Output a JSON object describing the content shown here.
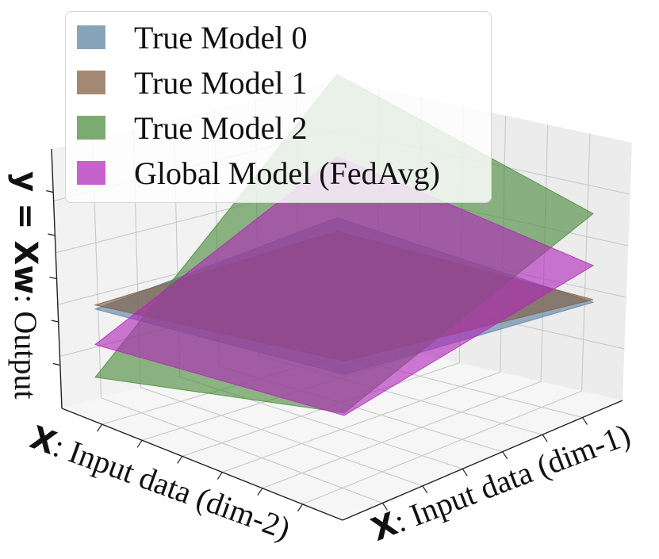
{
  "chart_data": {
    "type": "surface3d",
    "axes": {
      "x_dim1": {
        "bold": "X",
        "text": ": Input data (dim-1)"
      },
      "x_dim2": {
        "bold": "X",
        "text": ": Input data (dim-2)"
      },
      "y": {
        "bold": "y = Xw",
        "text": ": Output"
      }
    },
    "ticks_labeled": false,
    "grid": true,
    "legend": {
      "position": "top-left"
    },
    "series": [
      {
        "name": "True Model 0",
        "color": "#5a81a1",
        "corners": {
          "near": -0.2,
          "right": 0.33,
          "far": 0.95,
          "left": 0.28
        }
      },
      {
        "name": "True Model 1",
        "color": "#7f5b3f",
        "corners": {
          "near": -0.1,
          "right": 0.35,
          "far": 0.85,
          "left": 0.31
        }
      },
      {
        "name": "True Model 2",
        "color": "#4a8a3a",
        "corners": {
          "near": -0.48,
          "right": 0.98,
          "far": 2.0,
          "left": -0.22
        }
      },
      {
        "name": "Global Model (FedAvg)",
        "color": "#b026b8",
        "corners": {
          "near": -0.5,
          "right": 0.6,
          "far": 1.4,
          "left": 0.02
        }
      }
    ]
  }
}
